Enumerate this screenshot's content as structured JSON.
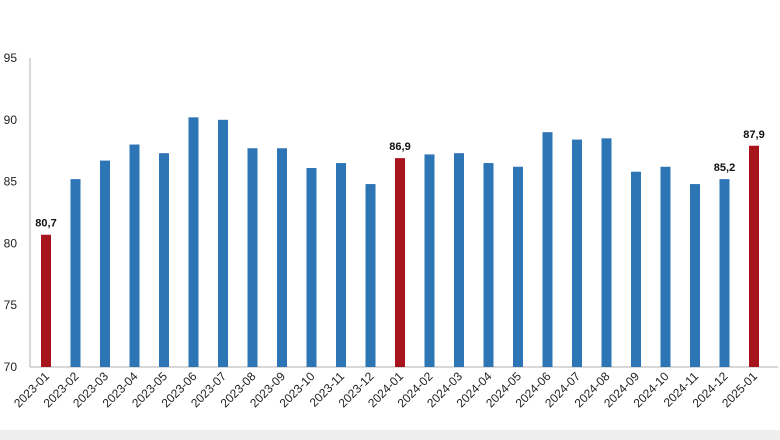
{
  "chart_data": {
    "type": "bar",
    "title": "",
    "xlabel": "",
    "ylabel": "",
    "ylim": [
      70,
      95
    ],
    "yticks": [
      "70",
      "75",
      "80",
      "85",
      "90",
      "95"
    ],
    "grid": false,
    "legend": "none",
    "colors": {
      "default": "#2E75B6",
      "highlight": "#A8141B",
      "axis": "#b0b0b0",
      "band": "#eeeeee"
    },
    "categories": [
      "2023-01",
      "2023-02",
      "2023-03",
      "2023-04",
      "2023-05",
      "2023-06",
      "2023-07",
      "2023-08",
      "2023-09",
      "2023-10",
      "2023-11",
      "2023-12",
      "2024-01",
      "2024-02",
      "2024-03",
      "2024-04",
      "2024-05",
      "2024-06",
      "2024-07",
      "2024-08",
      "2024-09",
      "2024-10",
      "2024-11",
      "2024-12",
      "2025-01"
    ],
    "values": [
      80.7,
      85.2,
      86.7,
      88.0,
      87.3,
      90.2,
      90.0,
      87.7,
      87.7,
      86.1,
      86.5,
      84.8,
      86.9,
      87.2,
      87.3,
      86.5,
      86.2,
      89.0,
      88.4,
      88.5,
      85.8,
      86.2,
      84.8,
      85.2,
      87.9
    ],
    "highlighted": [
      "2023-01",
      "2024-01",
      "2025-01"
    ],
    "data_labels": [
      {
        "category": "2023-01",
        "text": "80,7"
      },
      {
        "category": "2024-01",
        "text": "86,9"
      },
      {
        "category": "2024-12",
        "text": "85,2"
      },
      {
        "category": "2025-01",
        "text": "87,9"
      }
    ]
  }
}
